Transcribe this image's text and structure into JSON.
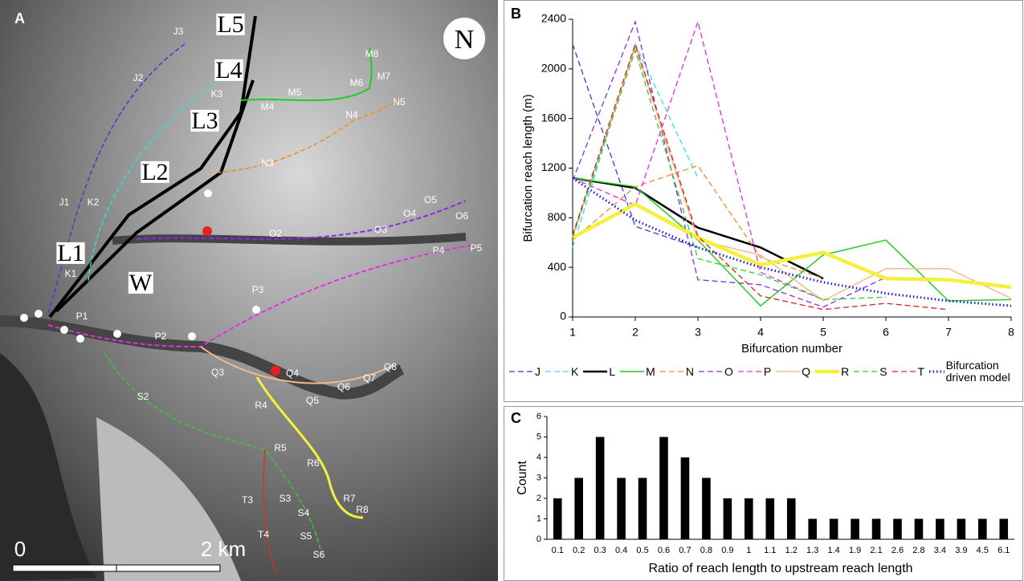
{
  "map": {
    "panel_label": "A",
    "north": "N",
    "scale_zero": "0",
    "scale_end": "2 km",
    "reach_labels": [
      "L5",
      "L4",
      "L3",
      "L2",
      "L1",
      "W"
    ],
    "labels": [
      "J3",
      "J2",
      "J1",
      "K3",
      "K2",
      "K1",
      "M8",
      "M7",
      "M6",
      "M5",
      "M4",
      "N5",
      "N4",
      "N3",
      "O5",
      "O4",
      "O6",
      "O3",
      "O2",
      "P5",
      "P4",
      "P3",
      "P1",
      "P2",
      "Q3",
      "Q4",
      "Q8",
      "Q7",
      "Q6",
      "Q5",
      "S2",
      "R4",
      "R5",
      "R6",
      "R7",
      "R8",
      "T3",
      "S3",
      "S4",
      "T4",
      "S5",
      "S6"
    ]
  },
  "chart_data": [
    {
      "type": "line",
      "panel_label": "B",
      "y_label": "Bifurcation  reach length (m)",
      "x_label": "Bifurcation number",
      "x": [
        1,
        2,
        3,
        4,
        5,
        6,
        7,
        8
      ],
      "xlim": [
        1,
        8
      ],
      "xticks": [
        1,
        2,
        3,
        4,
        5,
        6,
        7,
        8
      ],
      "ylim": [
        0,
        2400
      ],
      "yticks": [
        0,
        400,
        800,
        1200,
        1600,
        2000,
        2400
      ],
      "grid": false,
      "series": [
        {
          "name": "J",
          "color": "#2b3fd1",
          "dash": "dashed",
          "values": [
            2200,
            730,
            560,
            null,
            null,
            null,
            null,
            null
          ]
        },
        {
          "name": "K",
          "color": "#33ddee",
          "dash": "dashed",
          "values": [
            560,
            2200,
            1120,
            null,
            null,
            null,
            null,
            null
          ]
        },
        {
          "name": "L",
          "color": "#000000",
          "dash": "bold",
          "values": [
            1120,
            1040,
            720,
            560,
            310,
            null,
            null,
            null
          ]
        },
        {
          "name": "M",
          "color": "#22cc22",
          "dash": "solid",
          "values": [
            1120,
            1050,
            620,
            90,
            500,
            620,
            130,
            140
          ]
        },
        {
          "name": "N",
          "color": "#f08c28",
          "dash": "dashed",
          "values": [
            620,
            1050,
            1220,
            480,
            310,
            null,
            null,
            null
          ]
        },
        {
          "name": "O",
          "color": "#8a2be2",
          "dash": "dashed",
          "values": [
            1100,
            2380,
            300,
            260,
            80,
            320,
            null,
            null
          ]
        },
        {
          "name": "P",
          "color": "#e030e0",
          "dash": "dashed",
          "values": [
            1120,
            900,
            2380,
            360,
            140,
            null,
            null,
            null
          ]
        },
        {
          "name": "Q",
          "color": "#f5b98a",
          "dash": "solid",
          "values": [
            650,
            2180,
            620,
            500,
            130,
            390,
            390,
            150
          ]
        },
        {
          "name": "R",
          "color": "#f5f03c",
          "dash": "thick",
          "values": [
            640,
            910,
            640,
            420,
            520,
            310,
            300,
            240
          ]
        },
        {
          "name": "S",
          "color": "#33cc33",
          "dash": "dashed",
          "values": [
            640,
            2150,
            470,
            340,
            140,
            160,
            null,
            null
          ]
        },
        {
          "name": "T",
          "color": "#dd2222",
          "dash": "dashed",
          "values": [
            660,
            2200,
            650,
            170,
            60,
            110,
            60,
            null
          ]
        },
        {
          "name": "Bifurcation driven model",
          "color": "#1a1ad4",
          "dash": "dotted",
          "values": [
            1120,
            780,
            560,
            400,
            280,
            190,
            130,
            90
          ]
        }
      ]
    },
    {
      "type": "bar",
      "panel_label": "C",
      "y_label": "Count",
      "x_label": "Ratio of reach length to upstream reach length",
      "categories": [
        "0.1",
        "0.2",
        "0.3",
        "0.4",
        "0.5",
        "0.6",
        "0.7",
        "0.8",
        "0.9",
        "1",
        "1.1",
        "1.2",
        "1.3",
        "1.4",
        "1.9",
        "2.1",
        "2.6",
        "2.8",
        "3.4",
        "3.9",
        "4.5",
        "6.1"
      ],
      "values": [
        2,
        3,
        5,
        3,
        3,
        5,
        4,
        3,
        2,
        2,
        2,
        2,
        1,
        1,
        1,
        1,
        1,
        1,
        1,
        1,
        1,
        1
      ],
      "color": "#000000",
      "ylim": [
        0,
        6
      ],
      "yticks": [
        0,
        1,
        2,
        3,
        4,
        5,
        6
      ],
      "grid": false
    }
  ]
}
